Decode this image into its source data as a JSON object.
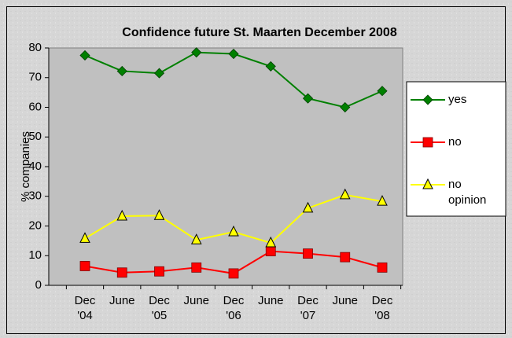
{
  "chart_data": {
    "type": "line",
    "title": "Confidence future St. Maarten December 2008",
    "y_label": "% companies",
    "categories": [
      "Dec '04",
      "June",
      "Dec '05",
      "June",
      "Dec '06",
      "June",
      "Dec '07",
      "June",
      "Dec '08"
    ],
    "series": [
      {
        "name": "yes",
        "color": "#008000",
        "marker": "diamond",
        "values": [
          77.5,
          72.2,
          71.5,
          78.5,
          78,
          73.8,
          63,
          60,
          65.5
        ]
      },
      {
        "name": "no",
        "color": "#ff0000",
        "marker": "square",
        "values": [
          6.5,
          4.3,
          4.7,
          6,
          4,
          11.5,
          10.7,
          9.5,
          6
        ]
      },
      {
        "name": "no opinion",
        "color": "#ffff00",
        "marker": "triangle",
        "values": [
          15.8,
          23.3,
          23.5,
          15.3,
          18,
          14.3,
          26,
          30.5,
          28.3
        ]
      }
    ],
    "ylim": [
      0,
      80
    ],
    "yticks": [
      0,
      10,
      20,
      30,
      40,
      50,
      60,
      70,
      80
    ],
    "grid": false,
    "legend": "right"
  }
}
